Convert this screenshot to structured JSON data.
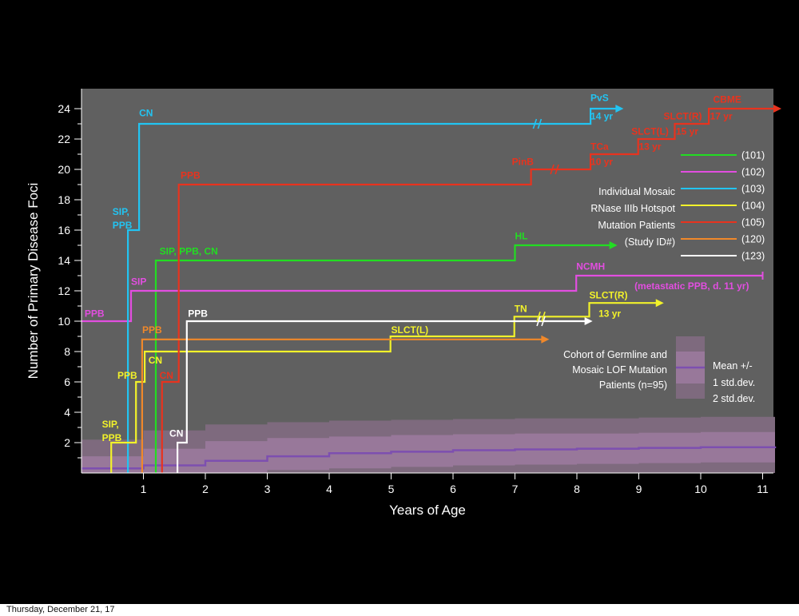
{
  "footer": {
    "date": "Thursday, December 21, 17"
  },
  "colors": {
    "background": "#000000",
    "plot_bg": "#606060",
    "band_2sd": "#7e6a7e",
    "band_1sd": "#98789a",
    "mean_line": "#7d4fb0"
  },
  "chart_data": {
    "type": "line",
    "title": "",
    "xlabel": "Years of Age",
    "ylabel": "Number of Primary Disease Foci",
    "xlim": [
      0,
      11.2
    ],
    "ylim": [
      0,
      25
    ],
    "x_ticks": [
      1,
      2,
      3,
      4,
      5,
      6,
      7,
      8,
      9,
      10,
      11
    ],
    "y_ticks": [
      2,
      4,
      6,
      8,
      10,
      12,
      14,
      16,
      18,
      20,
      22,
      24
    ],
    "grid": false,
    "cohort": {
      "name": "Cohort of Germline and Mosaic LOF Mutation Patients (n=95)",
      "label_lines": [
        "Cohort of Germline and",
        "Mosaic LOF Mutation",
        "Patients (n=95)"
      ],
      "legend_title": "Mean +/-",
      "legend_1sd": "1 std.dev.",
      "legend_2sd": "2 std.dev.",
      "mean": [
        [
          0,
          0.3
        ],
        [
          1,
          0.5
        ],
        [
          2,
          0.8
        ],
        [
          3,
          1.1
        ],
        [
          4,
          1.3
        ],
        [
          5,
          1.4
        ],
        [
          6,
          1.5
        ],
        [
          7,
          1.55
        ],
        [
          8,
          1.6
        ],
        [
          9,
          1.65
        ],
        [
          10,
          1.7
        ],
        [
          11.2,
          1.75
        ]
      ],
      "sd1": [
        [
          0,
          1.1
        ],
        [
          1,
          1.6
        ],
        [
          2,
          2.1
        ],
        [
          3,
          2.3
        ],
        [
          4,
          2.4
        ],
        [
          5,
          2.5
        ],
        [
          6,
          2.55
        ],
        [
          7,
          2.6
        ],
        [
          8,
          2.6
        ],
        [
          9,
          2.65
        ],
        [
          10,
          2.7
        ],
        [
          11.2,
          2.75
        ]
      ],
      "sd2": [
        [
          0,
          2.2
        ],
        [
          1,
          2.8
        ],
        [
          2,
          3.2
        ],
        [
          3,
          3.35
        ],
        [
          4,
          3.45
        ],
        [
          5,
          3.5
        ],
        [
          6,
          3.55
        ],
        [
          7,
          3.6
        ],
        [
          8,
          3.6
        ],
        [
          9,
          3.65
        ],
        [
          10,
          3.7
        ],
        [
          11.2,
          3.75
        ]
      ],
      "sd1_low": [
        [
          0,
          0
        ],
        [
          1,
          0
        ],
        [
          2,
          0
        ],
        [
          3,
          0.2
        ],
        [
          4,
          0.3
        ],
        [
          5,
          0.4
        ],
        [
          6,
          0.5
        ],
        [
          7,
          0.55
        ],
        [
          8,
          0.6
        ],
        [
          9,
          0.65
        ],
        [
          10,
          0.7
        ],
        [
          11.2,
          0.75
        ]
      ],
      "sd2_low": [
        [
          0,
          0
        ],
        [
          1,
          0
        ],
        [
          2,
          0
        ],
        [
          3,
          0
        ],
        [
          4,
          0
        ],
        [
          5,
          0
        ],
        [
          6,
          0
        ],
        [
          7,
          0
        ],
        [
          8,
          0
        ],
        [
          9,
          0
        ],
        [
          10,
          0
        ],
        [
          11.2,
          0
        ]
      ]
    },
    "legend": {
      "lines": [
        "Individual Mosaic",
        "RNase IIIb Hotspot",
        "Mutation Patients",
        "(Study ID#)"
      ],
      "entries": [
        {
          "id": "(101)",
          "color": "#22dd22"
        },
        {
          "id": "(102)",
          "color": "#e24ee0"
        },
        {
          "id": "(103)",
          "color": "#22c4f2"
        },
        {
          "id": "(104)",
          "color": "#f2f22a"
        },
        {
          "id": "(105)",
          "color": "#e8331e"
        },
        {
          "id": "(120)",
          "color": "#f0882a"
        },
        {
          "id": "(123)",
          "color": "#ffffff"
        }
      ]
    },
    "series": [
      {
        "id": "101",
        "color": "#22dd22",
        "arrow": "arrow",
        "points": [
          [
            1.2,
            0
          ],
          [
            1.2,
            14
          ],
          [
            7.0,
            14
          ],
          [
            7.0,
            15
          ],
          [
            8.55,
            15
          ]
        ]
      },
      {
        "id": "102",
        "color": "#e24ee0",
        "arrow": "bar",
        "points": [
          [
            0,
            10
          ],
          [
            0.8,
            10
          ],
          [
            0.8,
            12
          ],
          [
            7.99,
            12
          ],
          [
            7.99,
            13
          ],
          [
            11.0,
            13
          ]
        ]
      },
      {
        "id": "103",
        "color": "#22c4f2",
        "arrow": "arrow",
        "points": [
          [
            0.75,
            0
          ],
          [
            0.75,
            16
          ],
          [
            0.93,
            16
          ],
          [
            0.93,
            23
          ],
          [
            7.33,
            23
          ],
          [
            7.33,
            23
          ],
          [
            8.22,
            23
          ],
          [
            8.22,
            24
          ],
          [
            8.65,
            24
          ]
        ]
      },
      {
        "id": "104",
        "color": "#f2f22a",
        "arrow": "arrow",
        "points": [
          [
            0.48,
            0
          ],
          [
            0.48,
            2
          ],
          [
            0.88,
            2
          ],
          [
            0.88,
            6
          ],
          [
            1.02,
            6
          ],
          [
            1.02,
            8
          ],
          [
            4.99,
            8
          ],
          [
            4.99,
            9
          ],
          [
            6.99,
            9
          ],
          [
            6.99,
            10.3
          ],
          [
            7.37,
            10.3
          ],
          [
            8.2,
            10.3
          ],
          [
            8.2,
            11.2
          ],
          [
            9.3,
            11.2
          ]
        ]
      },
      {
        "id": "105",
        "color": "#e8331e",
        "arrow": "arrow",
        "points": [
          [
            1.3,
            0
          ],
          [
            1.3,
            6
          ],
          [
            1.57,
            6
          ],
          [
            1.57,
            19
          ],
          [
            7.26,
            19
          ],
          [
            7.26,
            20
          ],
          [
            7.6,
            20
          ],
          [
            8.22,
            20
          ],
          [
            8.22,
            21
          ],
          [
            8.99,
            21
          ],
          [
            8.99,
            22
          ],
          [
            9.58,
            22
          ],
          [
            9.58,
            23
          ],
          [
            10.13,
            23
          ],
          [
            10.13,
            24
          ],
          [
            11.2,
            24
          ]
        ]
      },
      {
        "id": "120",
        "color": "#f0882a",
        "arrow": "arrow",
        "points": [
          [
            0.98,
            0
          ],
          [
            0.98,
            8.8
          ],
          [
            7.45,
            8.8
          ]
        ]
      },
      {
        "id": "123",
        "color": "#ffffff",
        "arrow": "arrow",
        "points": [
          [
            1.55,
            0
          ],
          [
            1.55,
            2
          ],
          [
            1.7,
            2
          ],
          [
            1.7,
            10
          ],
          [
            7.4,
            10
          ],
          [
            7.4,
            10
          ],
          [
            8.15,
            10
          ]
        ]
      }
    ],
    "breaks": [
      {
        "x": 7.36,
        "y": 23,
        "color": "#22c4f2"
      },
      {
        "x": 7.64,
        "y": 20,
        "color": "#e8331e"
      },
      {
        "x": 7.42,
        "y": 10.3,
        "color": "#f2f22a"
      },
      {
        "x": 7.42,
        "y": 10,
        "color": "#ffffff"
      }
    ],
    "annotations": [
      {
        "text": "CN",
        "x": 0.93,
        "y": 23.5,
        "color": "#22c4f2"
      },
      {
        "text": "SIP,",
        "x": 0.5,
        "y": 17.0,
        "color": "#22c4f2"
      },
      {
        "text": "PPB",
        "x": 0.5,
        "y": 16.1,
        "color": "#22c4f2"
      },
      {
        "text": "PvS",
        "x": 8.22,
        "y": 24.5,
        "color": "#22c4f2"
      },
      {
        "text": "14 yr",
        "x": 8.22,
        "y": 23.3,
        "color": "#22c4f2"
      },
      {
        "text": "PPB",
        "x": 1.6,
        "y": 19.4,
        "color": "#e8331e"
      },
      {
        "text": "PinB",
        "x": 6.95,
        "y": 20.3,
        "color": "#e8331e"
      },
      {
        "text": "TCa",
        "x": 8.22,
        "y": 21.3,
        "color": "#e8331e"
      },
      {
        "text": "10 yr",
        "x": 8.22,
        "y": 20.3,
        "color": "#e8331e"
      },
      {
        "text": "SLCT(L)",
        "x": 8.88,
        "y": 22.3,
        "color": "#e8331e"
      },
      {
        "text": "13 yr",
        "x": 9.0,
        "y": 21.3,
        "color": "#e8331e"
      },
      {
        "text": "SLCT(R)",
        "x": 9.4,
        "y": 23.3,
        "color": "#e8331e"
      },
      {
        "text": "15 yr",
        "x": 9.6,
        "y": 22.3,
        "color": "#e8331e"
      },
      {
        "text": "CBME",
        "x": 10.2,
        "y": 24.4,
        "color": "#e8331e"
      },
      {
        "text": "17 yr",
        "x": 10.15,
        "y": 23.3,
        "color": "#e8331e"
      },
      {
        "text": "CN",
        "x": 1.26,
        "y": 6.2,
        "color": "#e8331e"
      },
      {
        "text": "SIP, PPB, CN",
        "x": 1.26,
        "y": 14.4,
        "color": "#22dd22"
      },
      {
        "text": "HL",
        "x": 7.0,
        "y": 15.4,
        "color": "#22dd22"
      },
      {
        "text": "PPB",
        "x": 0.05,
        "y": 10.3,
        "color": "#e24ee0"
      },
      {
        "text": "SIP",
        "x": 0.8,
        "y": 12.4,
        "color": "#e24ee0"
      },
      {
        "text": "NCMH",
        "x": 7.99,
        "y": 13.4,
        "color": "#e24ee0"
      },
      {
        "text": "(metastatic PPB, d. 11 yr)",
        "x": 8.93,
        "y": 12.1,
        "color": "#e24ee0"
      },
      {
        "text": "PPB",
        "x": 0.98,
        "y": 9.2,
        "color": "#f0882a"
      },
      {
        "text": "PPB",
        "x": 1.72,
        "y": 10.3,
        "color": "#ffffff"
      },
      {
        "text": "CN",
        "x": 1.42,
        "y": 2.4,
        "color": "#ffffff"
      },
      {
        "text": "SIP,",
        "x": 0.33,
        "y": 3.0,
        "color": "#f2f22a"
      },
      {
        "text": "PPB",
        "x": 0.33,
        "y": 2.1,
        "color": "#f2f22a"
      },
      {
        "text": "PPB",
        "x": 0.58,
        "y": 6.2,
        "color": "#f2f22a"
      },
      {
        "text": "CN",
        "x": 1.08,
        "y": 7.2,
        "color": "#f2f22a"
      },
      {
        "text": "SLCT(L)",
        "x": 5.0,
        "y": 9.2,
        "color": "#f2f22a"
      },
      {
        "text": "TN",
        "x": 6.99,
        "y": 10.6,
        "color": "#f2f22a"
      },
      {
        "text": "SLCT(R)",
        "x": 8.2,
        "y": 11.5,
        "color": "#f2f22a"
      },
      {
        "text": "13 yr",
        "x": 8.35,
        "y": 10.3,
        "color": "#f2f22a"
      }
    ]
  }
}
